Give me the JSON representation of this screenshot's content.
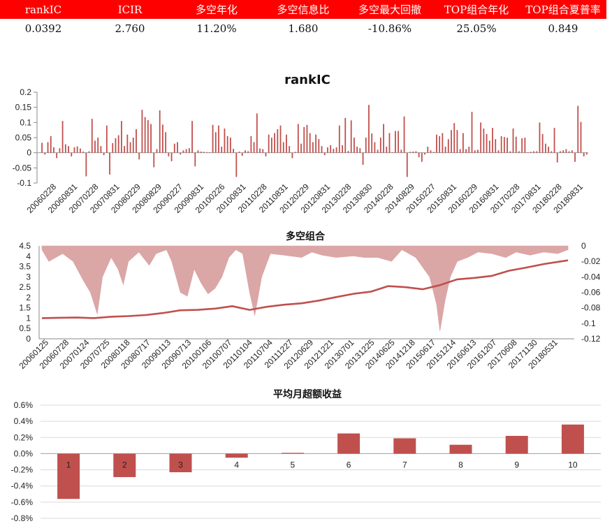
{
  "stats_table": {
    "headers": [
      "rankIC",
      "ICIR",
      "多空年化",
      "多空信息比",
      "多空最大回撤",
      "TOP组合年化",
      "TOP组合夏普率"
    ],
    "values": [
      "0.0392",
      "2.760",
      "11.20%",
      "1.680",
      "-10.86%",
      "25.05%",
      "0.849"
    ],
    "header_bg": "#ff0000",
    "header_color": "#ffffff"
  },
  "chart_data": [
    {
      "type": "bar",
      "title": "rankIC",
      "ylim": [
        -0.1,
        0.2
      ],
      "yticks": [
        "0.2",
        "0.15",
        "0.1",
        "0.05",
        "0",
        "-0.05",
        "-0.1"
      ],
      "x_tick_labels": [
        "20060228",
        "20060831",
        "20070228",
        "20070831",
        "20080229",
        "20080829",
        "20090227",
        "20090831",
        "20100226",
        "20100831",
        "20110228",
        "20110831",
        "20120229",
        "20120831",
        "20130228",
        "20130830",
        "20140228",
        "20140829",
        "20150227",
        "20150831",
        "20160229",
        "20160831",
        "20170228",
        "20170831",
        "20180228",
        "20180831"
      ],
      "color": "#c0504d",
      "values": [
        0.033,
        -0.006,
        0.035,
        0.055,
        0.018,
        -0.018,
        0.015,
        0.105,
        0.028,
        0.022,
        -0.012,
        0.018,
        0.021,
        0.014,
        0.004,
        -0.078,
        0.005,
        0.112,
        0.04,
        0.05,
        0.022,
        -0.008,
        0.09,
        -0.072,
        0.032,
        0.048,
        0.058,
        0.105,
        0.022,
        0.06,
        0.035,
        0.05,
        0.078,
        -0.022,
        0.142,
        0.118,
        0.108,
        0.095,
        -0.048,
        0.012,
        0.14,
        0.093,
        0.068,
        -0.012,
        -0.028,
        0.03,
        0.035,
        -0.006,
        0.008,
        0.012,
        0.015,
        0.105,
        -0.045,
        0.008,
        0.004,
        0.003,
        0.002,
        0.002,
        0.092,
        0.068,
        0.09,
        0.02,
        0.08,
        0.055,
        0.05,
        0.013,
        -0.08,
        0.004,
        -0.01,
        0.008,
        0.005,
        0.055,
        0.035,
        0.13,
        0.014,
        0.012,
        -0.012,
        0.06,
        0.05,
        0.065,
        0.078,
        0.09,
        0.035,
        0.06,
        0.022,
        -0.018,
        0.003,
        0.095,
        0.03,
        0.085,
        0.092,
        0.065,
        0.035,
        0.06,
        0.045,
        0.022,
        -0.008,
        0.018,
        0.025,
        0.013,
        0.018,
        0.09,
        0.025,
        0.115,
        0.006,
        0.107,
        0.05,
        0.02,
        0.015,
        -0.04,
        0.05,
        0.158,
        0.064,
        0.035,
        0.01,
        0.05,
        0.095,
        0.02,
        0.065,
        0.002,
        0.072,
        0.072,
        0.01,
        0.12,
        -0.08,
        0.003,
        0.004,
        0.005,
        -0.015,
        -0.03,
        -0.006,
        0.02,
        0.008,
        0.003,
        0.06,
        0.055,
        0.065,
        0.02,
        0.045,
        0.075,
        0.098,
        0.075,
        0.012,
        0.065,
        0.012,
        0.02,
        0.135,
        0.008,
        0.01,
        0.1,
        0.08,
        0.062,
        0.04,
        0.082,
        0.045,
        0.008,
        0.055,
        0.052,
        0.05,
        0.005,
        0.08,
        0.053,
        0.005,
        0.048,
        0.05,
        0.002,
        0.003,
        0.005,
        0.005,
        0.1,
        0.062,
        0.03,
        0.02,
        0.005,
        0.082,
        -0.032,
        0.005,
        0.008,
        0.012,
        0.005,
        0.008,
        -0.03,
        0.155,
        0.102,
        -0.012,
        -0.006
      ]
    },
    {
      "type": "line",
      "title": "多空组合",
      "left_ylim": [
        0,
        4.5
      ],
      "left_yticks": [
        "4.5",
        "4",
        "3.5",
        "3",
        "2.5",
        "2",
        "1.5",
        "1",
        "0.5",
        "0"
      ],
      "right_ylim": [
        -0.12,
        0
      ],
      "right_yticks": [
        "0",
        "-0.02",
        "-0.04",
        "-0.06",
        "-0.08",
        "-0.1",
        "-0.12"
      ],
      "x_tick_labels": [
        "20060125",
        "20060728",
        "20070124",
        "20070725",
        "20080118",
        "20080717",
        "20090113",
        "20090713",
        "20100106",
        "20100707",
        "20110104",
        "20110704",
        "20111227",
        "20120629",
        "20121221",
        "20130701",
        "20131225",
        "20140625",
        "20141218",
        "20150617",
        "20151214",
        "20160613",
        "20161207",
        "20170608",
        "20171130",
        "20180531"
      ],
      "line_color": "#c0504d",
      "area_color": "#dba6a6",
      "nav": [
        [
          0,
          1
        ],
        [
          1,
          1.02
        ],
        [
          2,
          1.03
        ],
        [
          3,
          1.0
        ],
        [
          4,
          1.07
        ],
        [
          5,
          1.1
        ],
        [
          6,
          1.15
        ],
        [
          7,
          1.25
        ],
        [
          8,
          1.38
        ],
        [
          9,
          1.4
        ],
        [
          10,
          1.46
        ],
        [
          11,
          1.58
        ],
        [
          12,
          1.4
        ],
        [
          13,
          1.55
        ],
        [
          14,
          1.65
        ],
        [
          15,
          1.72
        ],
        [
          16,
          1.85
        ],
        [
          17,
          2.02
        ],
        [
          18,
          2.18
        ],
        [
          19,
          2.28
        ],
        [
          20,
          2.55
        ],
        [
          21,
          2.5
        ],
        [
          22,
          2.4
        ],
        [
          23,
          2.6
        ],
        [
          24,
          2.88
        ],
        [
          25,
          2.95
        ],
        [
          26,
          3.05
        ],
        [
          27,
          3.3
        ],
        [
          28,
          3.45
        ],
        [
          29,
          3.62
        ],
        [
          30,
          3.75
        ],
        [
          30.4,
          3.8
        ]
      ],
      "drawdown": [
        [
          0,
          -0.005
        ],
        [
          0.4,
          -0.02
        ],
        [
          1.2,
          -0.01
        ],
        [
          1.8,
          -0.02
        ],
        [
          2.4,
          -0.045
        ],
        [
          2.8,
          -0.06
        ],
        [
          3.2,
          -0.088
        ],
        [
          3.5,
          -0.04
        ],
        [
          4.0,
          -0.015
        ],
        [
          4.4,
          -0.03
        ],
        [
          4.7,
          -0.05
        ],
        [
          5.0,
          -0.02
        ],
        [
          5.6,
          -0.008
        ],
        [
          6.2,
          -0.025
        ],
        [
          6.6,
          -0.01
        ],
        [
          7.2,
          -0.005
        ],
        [
          7.5,
          -0.02
        ],
        [
          8.0,
          -0.06
        ],
        [
          8.4,
          -0.065
        ],
        [
          8.8,
          -0.03
        ],
        [
          9.2,
          -0.048
        ],
        [
          9.6,
          -0.062
        ],
        [
          10.0,
          -0.055
        ],
        [
          10.4,
          -0.04
        ],
        [
          10.8,
          -0.015
        ],
        [
          11.2,
          -0.005
        ],
        [
          11.6,
          -0.01
        ],
        [
          12.0,
          -0.06
        ],
        [
          12.3,
          -0.09
        ],
        [
          12.7,
          -0.04
        ],
        [
          13.2,
          -0.01
        ],
        [
          14,
          -0.012
        ],
        [
          15,
          -0.015
        ],
        [
          15.6,
          -0.008
        ],
        [
          16.2,
          -0.012
        ],
        [
          17,
          -0.015
        ],
        [
          18,
          -0.013
        ],
        [
          18.6,
          -0.015
        ],
        [
          19.4,
          -0.015
        ],
        [
          20.2,
          -0.02
        ],
        [
          20.8,
          -0.005
        ],
        [
          21.6,
          -0.015
        ],
        [
          22.4,
          -0.04
        ],
        [
          22.8,
          -0.075
        ],
        [
          23.0,
          -0.11
        ],
        [
          23.3,
          -0.07
        ],
        [
          23.6,
          -0.04
        ],
        [
          24.0,
          -0.02
        ],
        [
          24.6,
          -0.015
        ],
        [
          25.2,
          -0.008
        ],
        [
          26,
          -0.01
        ],
        [
          26.8,
          -0.015
        ],
        [
          27.4,
          -0.008
        ],
        [
          28.2,
          -0.012
        ],
        [
          29,
          -0.008
        ],
        [
          29.8,
          -0.01
        ],
        [
          30.4,
          -0.005
        ]
      ]
    },
    {
      "type": "bar",
      "title": "平均月超额收益",
      "categories": [
        "1",
        "2",
        "3",
        "4",
        "5",
        "6",
        "7",
        "8",
        "9",
        "10"
      ],
      "values": [
        -0.56,
        -0.29,
        -0.23,
        -0.05,
        0.01,
        0.25,
        0.19,
        0.11,
        0.22,
        0.36
      ],
      "ylim": [
        -0.8,
        0.6
      ],
      "yticks": [
        "0.6%",
        "0.4%",
        "0.2%",
        "0.0%",
        "-0.2%",
        "-0.4%",
        "-0.6%",
        "-0.8%"
      ],
      "color": "#c0504d"
    }
  ]
}
